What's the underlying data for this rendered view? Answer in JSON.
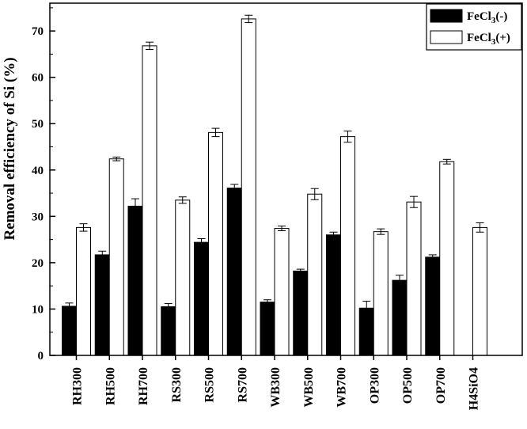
{
  "chart_data": {
    "type": "bar",
    "title": "",
    "xlabel": "",
    "ylabel": "Removal efficiency of Si (%)",
    "ylim": [
      0,
      76
    ],
    "yticks": [
      0,
      10,
      20,
      30,
      40,
      50,
      60,
      70
    ],
    "grid": false,
    "legend_position": "top-right",
    "categories": [
      "RH300",
      "RH500",
      "RH700",
      "RS300",
      "RS500",
      "RS700",
      "WB300",
      "WB500",
      "WB700",
      "OP300",
      "OP500",
      "OP700",
      "H4SiO4"
    ],
    "series": [
      {
        "name_parts": [
          "FeCl",
          "3",
          "(-)"
        ],
        "fill": "#000000",
        "values": [
          10.6,
          21.7,
          32.2,
          10.5,
          24.4,
          36.1,
          11.5,
          18.2,
          26.0,
          10.2,
          16.2,
          21.2,
          null
        ],
        "errors": [
          0.7,
          0.8,
          1.6,
          0.7,
          0.8,
          0.8,
          0.5,
          0.4,
          0.6,
          1.5,
          1.1,
          0.5,
          null
        ]
      },
      {
        "name_parts": [
          "FeCl",
          "3",
          "(+)"
        ],
        "fill": "#ffffff",
        "values": [
          27.6,
          42.4,
          66.8,
          33.5,
          48.1,
          72.6,
          27.4,
          34.8,
          47.2,
          26.7,
          33.1,
          41.8,
          27.6
        ],
        "errors": [
          0.8,
          0.4,
          0.8,
          0.7,
          0.9,
          0.8,
          0.5,
          1.2,
          1.2,
          0.6,
          1.2,
          0.5,
          1.0
        ]
      }
    ]
  }
}
